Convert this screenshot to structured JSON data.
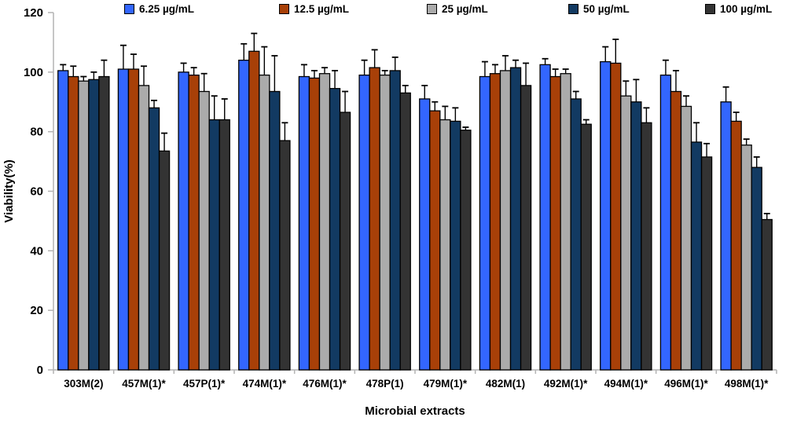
{
  "chart_data": {
    "type": "bar",
    "title": "",
    "xlabel": "Microbial extracts",
    "ylabel": "Viability(%)",
    "ylim": [
      0,
      120
    ],
    "yticks": [
      0,
      20,
      40,
      60,
      80,
      100,
      120
    ],
    "grid": false,
    "legend_position": "top",
    "categories": [
      "303M(2)",
      "457M(1)*",
      "457P(1)*",
      "474M(1)*",
      "476M(1)*",
      "478P(1)",
      "479M(1)*",
      "482M(1)",
      "492M(1)*",
      "494M(1)*",
      "496M(1)*",
      "498M(1)*"
    ],
    "series": [
      {
        "name": "6.25 µg/mL",
        "color": "#3366FF",
        "values": [
          100.5,
          101,
          100,
          104,
          98.5,
          99,
          91,
          98.5,
          102.5,
          103.5,
          99,
          90
        ],
        "errors": [
          2,
          8,
          3,
          5.5,
          4,
          5,
          4.5,
          5,
          2,
          5,
          5,
          5
        ]
      },
      {
        "name": "12.5 µg/mL",
        "color": "#A84008",
        "values": [
          98.5,
          101,
          99,
          107,
          98,
          101.5,
          87,
          99.5,
          98.5,
          103,
          93.5,
          83.5
        ],
        "errors": [
          3.5,
          5,
          2.5,
          6,
          2.5,
          6,
          3,
          3,
          2.5,
          8,
          7,
          3
        ]
      },
      {
        "name": "25 µg/mL",
        "color": "#ABABAB",
        "values": [
          97,
          95.5,
          93.5,
          99,
          99.5,
          99,
          84,
          100.5,
          99.5,
          92,
          88.5,
          75.5
        ],
        "errors": [
          1.5,
          6.5,
          6,
          9.5,
          2,
          1.5,
          4.5,
          5,
          1.5,
          5,
          3.5,
          2
        ]
      },
      {
        "name": "50 µg/mL",
        "color": "#123A62",
        "values": [
          97.5,
          88,
          84,
          93.5,
          94.5,
          100.5,
          83.5,
          101.5,
          91,
          90,
          76.5,
          68
        ],
        "errors": [
          2.5,
          2.5,
          8,
          12,
          6,
          4.5,
          4.5,
          2.5,
          2.5,
          7.5,
          6.5,
          3.5
        ]
      },
      {
        "name": "100 µg/mL",
        "color": "#333333",
        "values": [
          98.5,
          73.5,
          84,
          77,
          86.5,
          93,
          80.5,
          95.5,
          82.5,
          83,
          71.5,
          50.5
        ],
        "errors": [
          5.5,
          6,
          7,
          6,
          7,
          2.5,
          1,
          7.5,
          1.5,
          5,
          4.5,
          2
        ]
      }
    ],
    "axis_color": "#b3b3b3"
  }
}
